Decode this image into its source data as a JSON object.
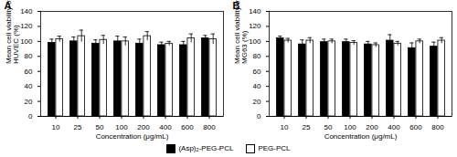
{
  "chart_data": [
    {
      "type": "bar",
      "title": "A",
      "x_label": "Concentration (μg/mL)",
      "y_label": "Mean cell viability of HUVEC (%)",
      "categories": [
        10,
        25,
        50,
        100,
        200,
        400,
        600,
        800
      ],
      "series": [
        {
          "name": "(Asp)₂-PEG-PCL",
          "color": "#000000",
          "values": [
            98,
            100,
            97,
            100,
            97,
            95,
            95,
            104
          ],
          "errors": [
            5,
            6,
            5,
            7,
            6,
            4,
            5,
            4
          ]
        },
        {
          "name": "PEG-PCL",
          "color": "#ffffff",
          "values": [
            103,
            107,
            102,
            100,
            107,
            97,
            104,
            103
          ],
          "errors": [
            4,
            8,
            6,
            6,
            6,
            3,
            6,
            7
          ]
        }
      ],
      "ylim": [
        0,
        140
      ],
      "yticks": [
        0,
        20,
        40,
        60,
        80,
        100,
        120,
        140
      ]
    },
    {
      "type": "bar",
      "title": "B",
      "x_label": "Concentration (μg/mL)",
      "y_label": "Mean cell viability of MG63 (%)",
      "categories": [
        10,
        25,
        50,
        100,
        200,
        400,
        600,
        800
      ],
      "series": [
        {
          "name": "(Asp)₂-PEG-PCL",
          "color": "#000000",
          "values": [
            104,
            96,
            99,
            99,
            96,
            101,
            91,
            93
          ],
          "errors": [
            3,
            6,
            4,
            4,
            4,
            8,
            7,
            6
          ]
        },
        {
          "name": "PEG-PCL",
          "color": "#ffffff",
          "values": [
            101,
            101,
            100,
            98,
            95,
            97,
            100,
            101
          ],
          "errors": [
            3,
            4,
            3,
            3,
            3,
            3,
            3,
            4
          ]
        }
      ],
      "ylim": [
        0,
        140
      ],
      "yticks": [
        0,
        20,
        40,
        60,
        80,
        100,
        120,
        140
      ]
    }
  ]
}
